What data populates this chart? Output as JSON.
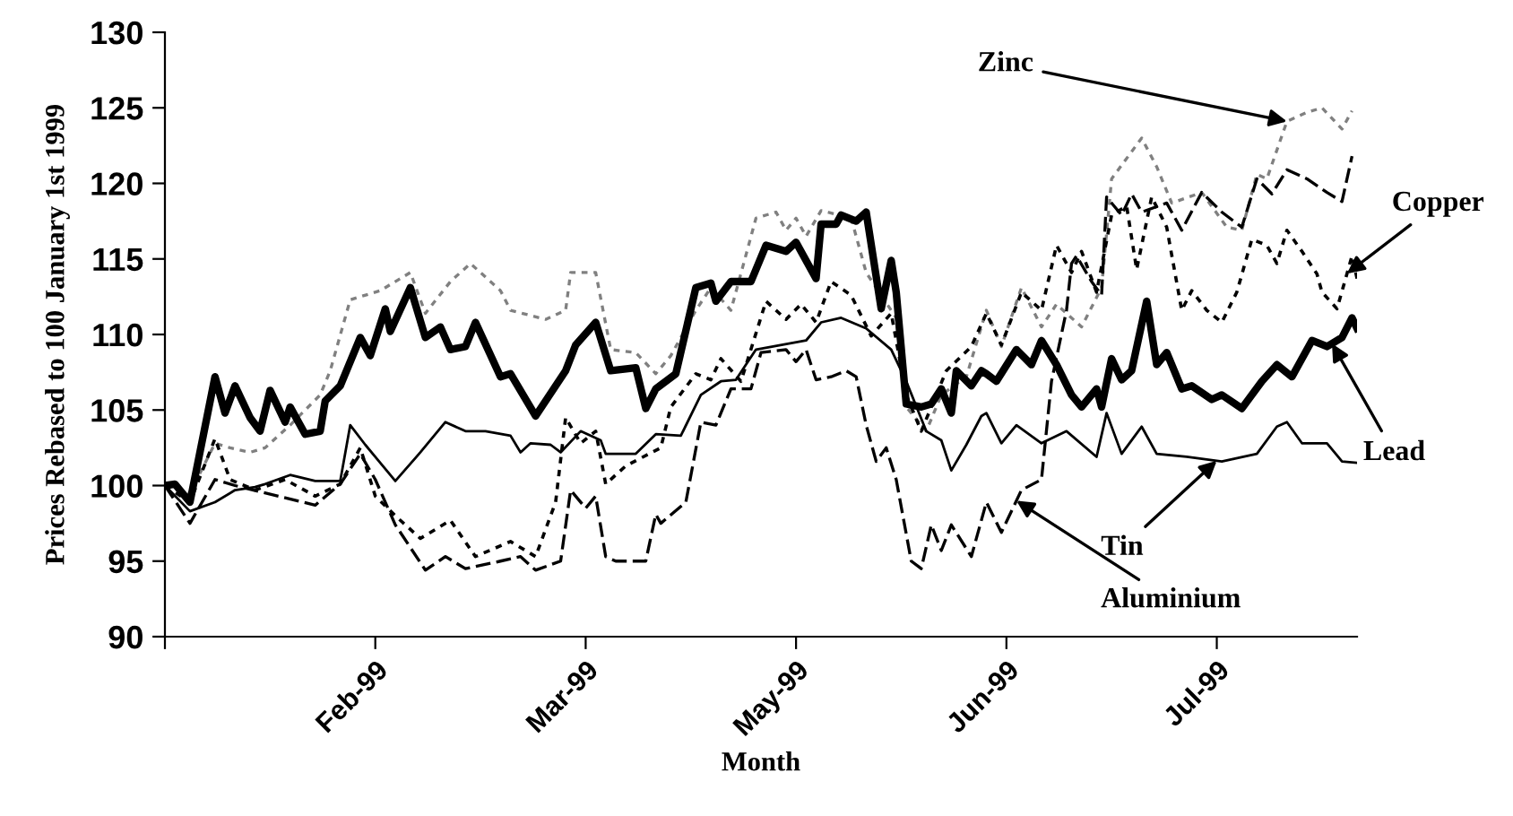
{
  "chart_data": {
    "type": "line",
    "xlabel": "Month",
    "ylabel": "Prices Rebased to 100 January 1st 1999",
    "xlim": [
      "1999-01-01",
      "1999-08-27"
    ],
    "xticks": [
      {
        "value": "1999-01-01",
        "label": null
      },
      {
        "value": "1999-02-12",
        "label": "Feb-99"
      },
      {
        "value": "1999-03-26",
        "label": "Mar-99"
      },
      {
        "value": "1999-05-07",
        "label": "May-99"
      },
      {
        "value": "1999-06-18",
        "label": "Jun-99"
      },
      {
        "value": "1999-07-30",
        "label": "Jul-99"
      }
    ],
    "ylim": [
      90,
      130
    ],
    "yticks": [
      90,
      95,
      100,
      105,
      110,
      115,
      120,
      125,
      130
    ],
    "grid": false,
    "legend": false,
    "marker": "none",
    "series": [
      {
        "name": "Zinc",
        "color": "#808080",
        "line_style": "dotted",
        "x": [
          "1999-01-01",
          "1999-01-06",
          "1999-01-11",
          "1999-01-14",
          "1999-01-18",
          "1999-01-21",
          "1999-01-26",
          "1999-02-01",
          "1999-02-03",
          "1999-02-07",
          "1999-02-13",
          "1999-02-19",
          "1999-02-22",
          "1999-02-27",
          "1999-03-03",
          "1999-03-09",
          "1999-03-11",
          "1999-03-18",
          "1999-03-22",
          "1999-03-23",
          "1999-03-28",
          "1999-03-31",
          "1999-04-05",
          "1999-04-09",
          "1999-04-12",
          "1999-04-17",
          "1999-04-20",
          "1999-04-24",
          "1999-04-29",
          "1999-05-03",
          "1999-05-05",
          "1999-05-07",
          "1999-05-09",
          "1999-05-12",
          "1999-05-18",
          "1999-05-21",
          "1999-05-27",
          "1999-05-29",
          "1999-06-02",
          "1999-06-05",
          "1999-06-10",
          "1999-06-14",
          "1999-06-17",
          "1999-06-21",
          "1999-06-25",
          "1999-06-28",
          "1999-07-03",
          "1999-07-07",
          "1999-07-09",
          "1999-07-15",
          "1999-07-18",
          "1999-07-21",
          "1999-07-27",
          "1999-08-01",
          "1999-08-04",
          "1999-08-07",
          "1999-08-09",
          "1999-08-13",
          "1999-08-17",
          "1999-08-20",
          "1999-08-24",
          "1999-08-26"
        ],
        "values": [
          100,
          99.5,
          102.8,
          102.5,
          102.2,
          102.5,
          104,
          106,
          107.6,
          112.3,
          112.9,
          114.1,
          111.4,
          113.5,
          114.7,
          112.9,
          111.6,
          111,
          111.6,
          114.1,
          114.1,
          109,
          108.8,
          107.4,
          108.6,
          111.6,
          113.1,
          111.6,
          117.7,
          118.1,
          116.9,
          117.7,
          116.5,
          118.2,
          117.7,
          114.1,
          111.1,
          105.2,
          103.6,
          106,
          107.2,
          111.6,
          109.2,
          113.1,
          110.5,
          112,
          110.5,
          113.1,
          120.3,
          123,
          121.1,
          118.7,
          119.4,
          117.1,
          116.9,
          120.6,
          120.3,
          124.1,
          124.7,
          125,
          123.6,
          124.8
        ]
      },
      {
        "name": "Aluminium",
        "color": "#000000",
        "line_style": "dashed",
        "x": [
          "1999-01-01",
          "1999-01-06",
          "1999-01-11",
          "1999-01-15",
          "1999-01-31",
          "1999-02-05",
          "1999-02-09",
          "1999-02-12",
          "1999-02-16",
          "1999-02-22",
          "1999-02-26",
          "1999-03-02",
          "1999-03-09",
          "1999-03-13",
          "1999-03-16",
          "1999-03-21",
          "1999-03-23",
          "1999-03-26",
          "1999-03-28",
          "1999-03-30",
          "1999-04-01",
          "1999-04-07",
          "1999-04-09",
          "1999-04-10",
          "1999-04-15",
          "1999-04-18",
          "1999-04-21",
          "1999-04-24",
          "1999-04-28",
          "1999-04-30",
          "1999-05-05",
          "1999-05-07",
          "1999-05-09",
          "1999-05-11",
          "1999-05-14",
          "1999-05-17",
          "1999-05-19",
          "1999-05-21",
          "1999-05-23",
          "1999-05-25",
          "1999-05-27",
          "1999-05-30",
          "1999-06-01",
          "1999-06-03",
          "1999-06-05",
          "1999-06-07",
          "1999-06-11",
          "1999-06-14",
          "1999-06-17",
          "1999-06-21",
          "1999-06-25",
          "1999-06-27",
          "1999-06-30",
          "1999-07-01",
          "1999-07-02",
          "1999-07-05",
          "1999-07-07",
          "1999-07-08",
          "1999-07-11",
          "1999-07-13",
          "1999-07-15",
          "1999-07-20",
          "1999-07-23",
          "1999-07-27",
          "1999-07-31",
          "1999-08-04",
          "1999-08-07",
          "1999-08-10",
          "1999-08-13",
          "1999-08-17",
          "1999-08-21",
          "1999-08-24",
          "1999-08-26"
        ],
        "values": [
          100,
          97.5,
          100.4,
          100,
          98.7,
          100.1,
          102.1,
          100.4,
          97.4,
          94.4,
          95.3,
          94.5,
          95,
          95.3,
          94.4,
          95,
          99.7,
          98.5,
          99.3,
          95.3,
          95,
          95,
          98.1,
          97.5,
          98.9,
          104.2,
          104,
          106.4,
          106.4,
          108.8,
          109,
          108.2,
          109,
          107,
          107.2,
          107.6,
          107.2,
          104,
          101.6,
          102.5,
          100.4,
          95,
          94.5,
          97.4,
          95.7,
          97.4,
          95.3,
          98.9,
          96.9,
          99.7,
          100.4,
          106.9,
          111.6,
          114.7,
          115.2,
          113.5,
          112.6,
          119.1,
          117.9,
          119.3,
          118.1,
          118.7,
          116.9,
          119.4,
          118.1,
          117.1,
          120.3,
          119.3,
          120.9,
          120.3,
          119.4,
          118.8,
          121.8
        ]
      },
      {
        "name": "Copper",
        "color": "#000000",
        "line_style": "dotted",
        "x": [
          "1999-01-01",
          "1999-01-06",
          "1999-01-11",
          "1999-01-14",
          "1999-01-19",
          "1999-01-25",
          "1999-01-31",
          "1999-02-05",
          "1999-02-09",
          "1999-02-12",
          "1999-02-16",
          "1999-02-21",
          "1999-02-27",
          "1999-03-04",
          "1999-03-11",
          "1999-03-16",
          "1999-03-20",
          "1999-03-22",
          "1999-03-25",
          "1999-03-28",
          "1999-03-30",
          "1999-04-03",
          "1999-04-10",
          "1999-04-12",
          "1999-04-17",
          "1999-04-20",
          "1999-04-22",
          "1999-04-26",
          "1999-05-01",
          "1999-05-05",
          "1999-05-08",
          "1999-05-11",
          "1999-05-14",
          "1999-05-18",
          "1999-05-22",
          "1999-05-26",
          "1999-05-29",
          "1999-06-01",
          "1999-06-03",
          "1999-06-06",
          "1999-06-11",
          "1999-06-14",
          "1999-06-17",
          "1999-06-21",
          "1999-06-25",
          "1999-06-28",
          "1999-07-01",
          "1999-07-03",
          "1999-07-06",
          "1999-07-09",
          "1999-07-12",
          "1999-07-14",
          "1999-07-17",
          "1999-07-20",
          "1999-07-23",
          "1999-07-25",
          "1999-07-28",
          "1999-07-31",
          "1999-08-03",
          "1999-08-06",
          "1999-08-09",
          "1999-08-11",
          "1999-08-13",
          "1999-08-16",
          "1999-08-19",
          "1999-08-20",
          "1999-08-23",
          "1999-08-26",
          "1999-08-27"
        ],
        "values": [
          100,
          98.9,
          103.1,
          100.4,
          99.7,
          100.4,
          99.3,
          100.1,
          102.5,
          99.3,
          98,
          96.5,
          97.7,
          95.3,
          96.3,
          95.3,
          98.9,
          104.5,
          102.8,
          103.6,
          100.1,
          101.3,
          102.5,
          105.2,
          107.4,
          107,
          108.4,
          106.9,
          112.2,
          111,
          112,
          110.8,
          113.5,
          112.6,
          109.9,
          111.4,
          106,
          103.6,
          105.2,
          107.6,
          109.2,
          111.4,
          109.3,
          112.8,
          111.6,
          115.9,
          114.1,
          115.5,
          112.8,
          117.9,
          118.5,
          114.3,
          119.1,
          117.1,
          111.6,
          112.9,
          111.6,
          110.8,
          112.8,
          116.3,
          115.9,
          114.7,
          116.9,
          115.5,
          114,
          112.8,
          111.7,
          115.2,
          113.7
        ]
      },
      {
        "name": "Lead",
        "color": "#000000",
        "line_style": "solid",
        "x": [
          "1999-01-01",
          "1999-01-03",
          "1999-01-06",
          "1999-01-11",
          "1999-01-13",
          "1999-01-15",
          "1999-01-18",
          "1999-01-20",
          "1999-01-22",
          "1999-01-25",
          "1999-01-26",
          "1999-01-29",
          "1999-02-01",
          "1999-02-02",
          "1999-02-05",
          "1999-02-09",
          "1999-02-11",
          "1999-02-14",
          "1999-02-15",
          "1999-02-19",
          "1999-02-22",
          "1999-02-25",
          "1999-02-27",
          "1999-03-02",
          "1999-03-04",
          "1999-03-09",
          "1999-03-11",
          "1999-03-16",
          "1999-03-22",
          "1999-03-24",
          "1999-03-28",
          "1999-03-31",
          "1999-04-05",
          "1999-04-07",
          "1999-04-09",
          "1999-04-13",
          "1999-04-17",
          "1999-04-20",
          "1999-04-21",
          "1999-04-24",
          "1999-04-28",
          "1999-05-01",
          "1999-05-05",
          "1999-05-07",
          "1999-05-11",
          "1999-05-12",
          "1999-05-15",
          "1999-05-16",
          "1999-05-19",
          "1999-05-21",
          "1999-05-24",
          "1999-05-26",
          "1999-05-27",
          "1999-05-29",
          "1999-06-01",
          "1999-06-03",
          "1999-06-05",
          "1999-06-07",
          "1999-06-08",
          "1999-06-11",
          "1999-06-13",
          "1999-06-14",
          "1999-06-16",
          "1999-06-20",
          "1999-06-23",
          "1999-06-25",
          "1999-06-28",
          "1999-07-01",
          "1999-07-03",
          "1999-07-06",
          "1999-07-07",
          "1999-07-09",
          "1999-07-11",
          "1999-07-13",
          "1999-07-16",
          "1999-07-18",
          "1999-07-20",
          "1999-07-23",
          "1999-07-25",
          "1999-07-29",
          "1999-07-31",
          "1999-08-04",
          "1999-08-08",
          "1999-08-11",
          "1999-08-14",
          "1999-08-18",
          "1999-08-21",
          "1999-08-24",
          "1999-08-26",
          "1999-08-27"
        ],
        "values": [
          100,
          100.1,
          98.9,
          107.2,
          104.8,
          106.6,
          104.5,
          103.6,
          106.3,
          104.2,
          105.2,
          103.4,
          103.6,
          105.6,
          106.6,
          109.8,
          108.6,
          111.7,
          110.2,
          113.1,
          109.8,
          110.5,
          109,
          109.2,
          110.8,
          107.2,
          107.4,
          104.6,
          107.6,
          109.3,
          110.8,
          107.6,
          107.8,
          105.1,
          106.4,
          107.4,
          113.1,
          113.4,
          112.2,
          113.5,
          113.5,
          115.9,
          115.5,
          116.1,
          113.7,
          117.3,
          117.3,
          117.9,
          117.5,
          118.1,
          111.7,
          114.9,
          112.8,
          105.4,
          105.2,
          105.4,
          106.4,
          104.8,
          107.6,
          106.6,
          107.6,
          107.4,
          106.9,
          109,
          108,
          109.6,
          108,
          106,
          105.2,
          106.4,
          105.2,
          108.4,
          107,
          107.6,
          112.2,
          108,
          108.8,
          106.4,
          106.6,
          105.7,
          106,
          105.1,
          106.9,
          108,
          107.2,
          109.6,
          109.2,
          109.8,
          111.1,
          110.4
        ]
      },
      {
        "name": "Tin",
        "color": "#000000",
        "line_style": "solid",
        "x": [
          "1999-01-01",
          "1999-01-06",
          "1999-01-11",
          "1999-01-15",
          "1999-01-19",
          "1999-01-21",
          "1999-01-26",
          "1999-01-31",
          "1999-02-05",
          "1999-02-07",
          "1999-02-10",
          "1999-02-16",
          "1999-02-21",
          "1999-02-26",
          "1999-03-02",
          "1999-03-06",
          "1999-03-11",
          "1999-03-13",
          "1999-03-15",
          "1999-03-19",
          "1999-03-21",
          "1999-03-25",
          "1999-03-29",
          "1999-03-30",
          "1999-04-05",
          "1999-04-09",
          "1999-04-14",
          "1999-04-18",
          "1999-04-22",
          "1999-04-25",
          "1999-04-29",
          "1999-05-09",
          "1999-05-12",
          "1999-05-16",
          "1999-05-21",
          "1999-05-26",
          "1999-05-29",
          "1999-06-02",
          "1999-06-05",
          "1999-06-07",
          "1999-06-10",
          "1999-06-13",
          "1999-06-14",
          "1999-06-17",
          "1999-06-20",
          "1999-06-25",
          "1999-06-30",
          "1999-07-06",
          "1999-07-08",
          "1999-07-11",
          "1999-07-15",
          "1999-07-18",
          "1999-07-24",
          "1999-07-31",
          "1999-08-07",
          "1999-08-11",
          "1999-08-13",
          "1999-08-16",
          "1999-08-21",
          "1999-08-24",
          "1999-08-27"
        ],
        "values": [
          100,
          98.3,
          98.9,
          99.7,
          99.9,
          100.1,
          100.7,
          100.3,
          100.3,
          104,
          102.7,
          100.3,
          102.2,
          104.2,
          103.6,
          103.6,
          103.3,
          102.2,
          102.8,
          102.7,
          102.2,
          103.6,
          103,
          102.1,
          102.1,
          103.4,
          103.3,
          106,
          106.9,
          107,
          109,
          109.6,
          110.8,
          111.1,
          110.4,
          109,
          106.9,
          103.6,
          103,
          101,
          102.7,
          104.6,
          104.8,
          102.8,
          104,
          102.8,
          103.6,
          101.9,
          104.8,
          102.1,
          103.9,
          102.1,
          101.9,
          101.6,
          102.1,
          103.9,
          104.2,
          102.8,
          102.8,
          101.6,
          101.5
        ]
      }
    ]
  }
}
